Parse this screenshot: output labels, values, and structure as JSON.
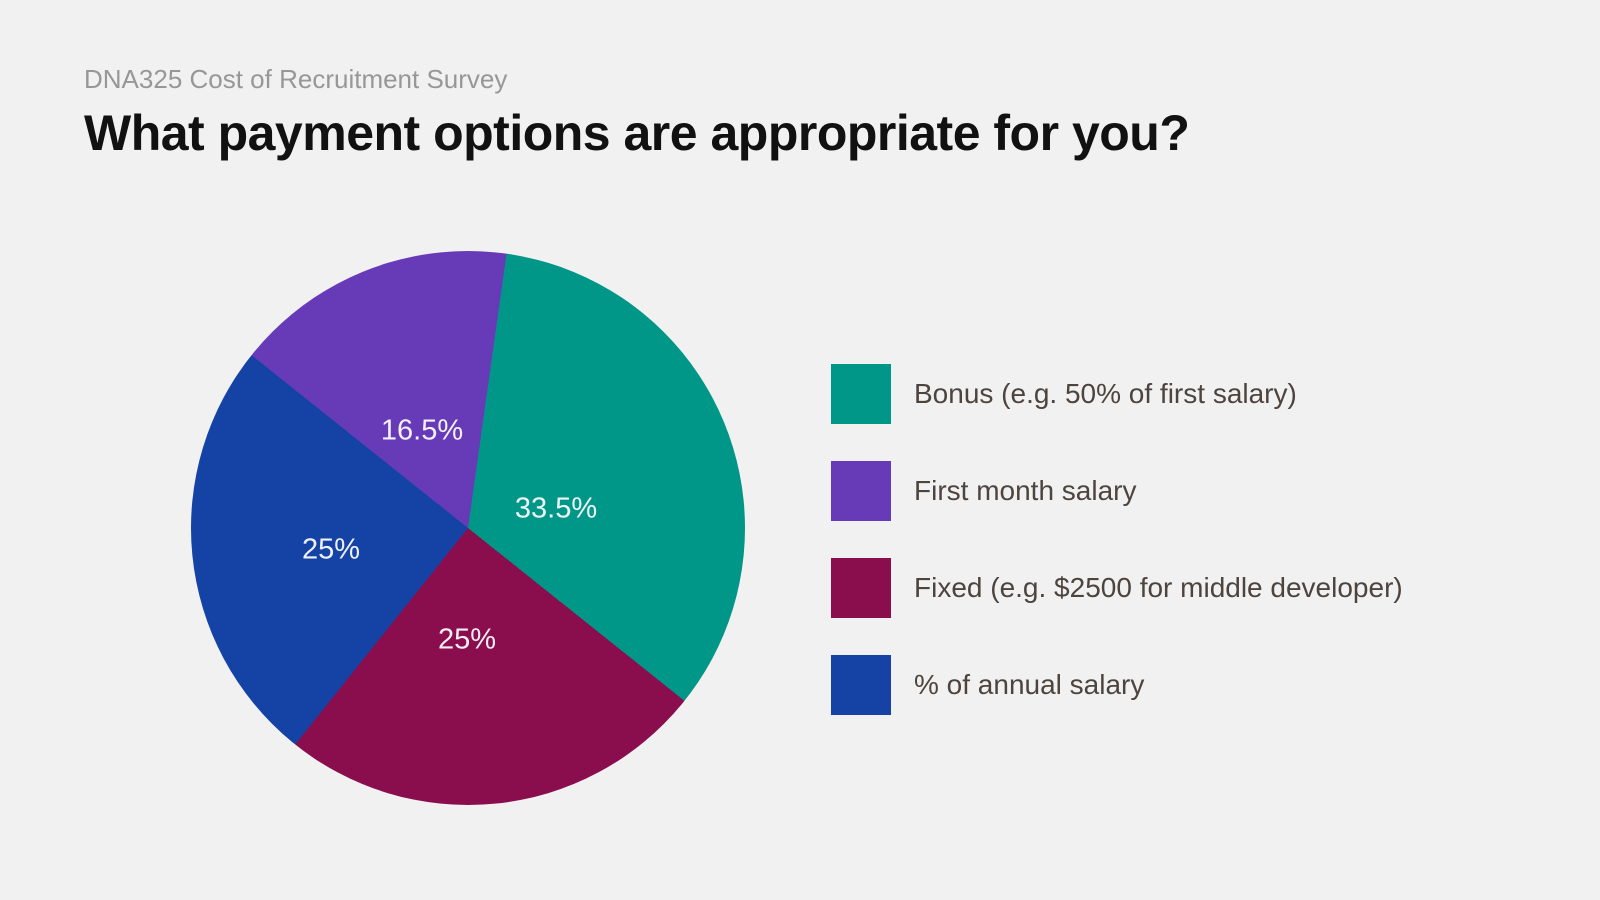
{
  "page": {
    "background_color": "#f1f1f1"
  },
  "header": {
    "subtitle": "DNA325 Cost of Recruitment Survey",
    "title": "What payment options are appropriate for you?",
    "subtitle_color": "#979797",
    "title_color": "#111111"
  },
  "chart_data": {
    "type": "pie",
    "title": "What payment options are appropriate for you?",
    "subtitle": "DNA325 Cost of Recruitment Survey",
    "legend_position": "right",
    "start_angle_deg": 8,
    "value_label_color": "rgba(255,255,255,0.93)",
    "legend_text_color": "#4e443e",
    "slices": [
      {
        "label": "Bonus (e.g. 50% of first salary)",
        "value": 33.5,
        "display": "33.5%",
        "color": "#009688"
      },
      {
        "label": "First month salary",
        "value": 16.5,
        "display": "16.5%",
        "color": "#673ab7"
      },
      {
        "label": "Fixed (e.g. $2500 for middle developer)",
        "value": 25,
        "display": "25%",
        "color": "#8a0d4e"
      },
      {
        "label": "% of annual salary",
        "value": 25,
        "display": "25%",
        "color": "#1443a5"
      }
    ],
    "pie_clockwise_order": [
      0,
      2,
      3,
      1
    ]
  }
}
